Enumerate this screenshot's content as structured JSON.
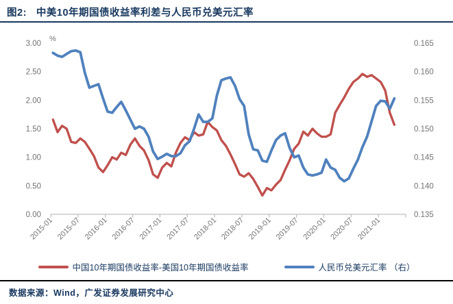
{
  "header": {
    "figure_label": "图2:",
    "title": "中美10年期国债收益率利差与人民币兑美元汇率"
  },
  "footer": {
    "source": "数据来源：Wind，广发证券发展研究中心"
  },
  "legend": {
    "items": [
      {
        "label": "中国10年期国债收益率-美国10年期国债收益率",
        "color": "#c0504d"
      },
      {
        "label": "人民币兑美元汇率 （右）",
        "color": "#4f81bd"
      }
    ]
  },
  "colors": {
    "spread_line": "#c0504d",
    "fx_line": "#4f81bd",
    "navy_text": "#17375e",
    "axis_gray": "#bfbfbf",
    "tick_text_gray": "#737373"
  },
  "chart_data": {
    "type": "line",
    "title": "中美10年期国债收益率利差与人民币兑美元汇率",
    "grid": false,
    "legend_position": "bottom",
    "left_axis": {
      "label": "%",
      "min": 0,
      "max": 3,
      "ticks": [
        "3.00",
        "2.50",
        "2.00",
        "1.50",
        "1.00",
        "0.50",
        "0.00"
      ]
    },
    "right_axis": {
      "min": 0.135,
      "max": 0.165,
      "ticks": [
        "0.165",
        "0.160",
        "0.155",
        "0.150",
        "0.145",
        "0.140",
        "0.135"
      ]
    },
    "x_tick_labels": [
      "2015-01",
      "2015-07",
      "2016-01",
      "2016-07",
      "2017-01",
      "2017-07",
      "2018-01",
      "2018-07",
      "2019-01",
      "2019-07",
      "2020-01",
      "2020-07",
      "2021-01"
    ],
    "x": [
      "2015-01",
      "2015-02",
      "2015-03",
      "2015-04",
      "2015-05",
      "2015-06",
      "2015-07",
      "2015-08",
      "2015-09",
      "2015-10",
      "2015-11",
      "2015-12",
      "2016-01",
      "2016-02",
      "2016-03",
      "2016-04",
      "2016-05",
      "2016-06",
      "2016-07",
      "2016-08",
      "2016-09",
      "2016-10",
      "2016-11",
      "2016-12",
      "2017-01",
      "2017-02",
      "2017-03",
      "2017-04",
      "2017-05",
      "2017-06",
      "2017-07",
      "2017-08",
      "2017-09",
      "2017-10",
      "2017-11",
      "2017-12",
      "2018-01",
      "2018-02",
      "2018-03",
      "2018-04",
      "2018-05",
      "2018-06",
      "2018-07",
      "2018-08",
      "2018-09",
      "2018-10",
      "2018-11",
      "2018-12",
      "2019-01",
      "2019-02",
      "2019-03",
      "2019-04",
      "2019-05",
      "2019-06",
      "2019-07",
      "2019-08",
      "2019-09",
      "2019-10",
      "2019-11",
      "2019-12",
      "2020-01",
      "2020-02",
      "2020-03",
      "2020-04",
      "2020-05",
      "2020-06",
      "2020-07",
      "2020-08",
      "2020-09",
      "2020-10",
      "2020-11",
      "2020-12",
      "2021-01",
      "2021-02",
      "2021-03",
      "2021-04"
    ],
    "series": [
      {
        "name": "中国10年期国债收益率-美国10年期国债收益率",
        "axis": "left",
        "unit": "%",
        "color": "#c0504d",
        "values": [
          1.66,
          1.44,
          1.55,
          1.5,
          1.27,
          1.25,
          1.33,
          1.27,
          1.15,
          1.02,
          0.82,
          0.74,
          0.86,
          1.0,
          0.96,
          1.08,
          1.04,
          1.22,
          1.33,
          1.2,
          1.12,
          0.95,
          0.7,
          0.64,
          0.82,
          0.9,
          0.84,
          1.08,
          1.25,
          1.35,
          1.3,
          1.44,
          1.38,
          1.4,
          1.62,
          1.53,
          1.47,
          1.3,
          1.2,
          1.05,
          0.88,
          0.7,
          0.66,
          0.72,
          0.62,
          0.48,
          0.33,
          0.46,
          0.42,
          0.52,
          0.6,
          0.78,
          0.95,
          1.15,
          1.24,
          1.45,
          1.38,
          1.5,
          1.42,
          1.36,
          1.36,
          1.4,
          1.78,
          1.92,
          2.05,
          2.2,
          2.32,
          2.38,
          2.46,
          2.41,
          2.44,
          2.38,
          2.32,
          2.17,
          1.78,
          1.57
        ]
      },
      {
        "name": "人民币兑美元汇率 （右）",
        "axis": "right",
        "unit": "USD per CNY",
        "color": "#4f81bd",
        "values": [
          0.1633,
          0.1628,
          0.1626,
          0.1631,
          0.1636,
          0.1637,
          0.1634,
          0.1598,
          0.1572,
          0.1575,
          0.1578,
          0.1553,
          0.153,
          0.1528,
          0.1538,
          0.1547,
          0.1532,
          0.1516,
          0.15,
          0.1504,
          0.15,
          0.1486,
          0.146,
          0.1447,
          0.1451,
          0.1456,
          0.1452,
          0.1452,
          0.1457,
          0.1471,
          0.1478,
          0.15,
          0.1525,
          0.1512,
          0.1512,
          0.1518,
          0.1558,
          0.1585,
          0.1588,
          0.159,
          0.1575,
          0.1552,
          0.154,
          0.149,
          0.1464,
          0.1462,
          0.1444,
          0.1442,
          0.1462,
          0.148,
          0.1488,
          0.1492,
          0.1466,
          0.145,
          0.1453,
          0.1432,
          0.142,
          0.1418,
          0.142,
          0.1423,
          0.1446,
          0.1432,
          0.1428,
          0.1414,
          0.1408,
          0.1413,
          0.143,
          0.1446,
          0.1468,
          0.1486,
          0.1513,
          0.154,
          0.1549,
          0.1548,
          0.1535,
          0.1553
        ]
      }
    ]
  }
}
